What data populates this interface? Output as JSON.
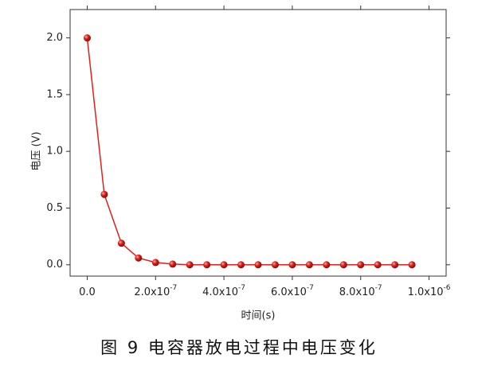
{
  "chart_data": {
    "type": "line",
    "x_label": "时间(s)",
    "y_label": "电压 (V)",
    "caption": "图 9  电容器放电过程中电压变化",
    "x": [
      0,
      5e-08,
      1e-07,
      1.5e-07,
      2e-07,
      2.5e-07,
      3e-07,
      3.5e-07,
      4e-07,
      4.5e-07,
      5e-07,
      5.5e-07,
      6e-07,
      6.5e-07,
      7e-07,
      7.5e-07,
      8e-07,
      8.5e-07,
      9e-07,
      9.5e-07
    ],
    "series": [
      {
        "name": "电压",
        "color": "#e0201b",
        "values": [
          2.0,
          0.62,
          0.19,
          0.06,
          0.02,
          0.006,
          0,
          0,
          0,
          0,
          0,
          0,
          0,
          0,
          0,
          0,
          0,
          0,
          0,
          0
        ]
      }
    ],
    "xlim": [
      -5e-08,
      1.05e-06
    ],
    "ylim": [
      -0.1,
      2.25
    ],
    "xticks": [
      {
        "value": 0,
        "label": "0.0"
      },
      {
        "value": 2e-07,
        "label": "2.0x10",
        "exponent": "-7"
      },
      {
        "value": 4e-07,
        "label": "4.0x10",
        "exponent": "-7"
      },
      {
        "value": 6e-07,
        "label": "6.0x10",
        "exponent": "-7"
      },
      {
        "value": 8e-07,
        "label": "8.0x10",
        "exponent": "-7"
      },
      {
        "value": 1e-06,
        "label": "1.0x10",
        "exponent": "-6"
      }
    ],
    "yticks": [
      {
        "value": 0,
        "label": "0.0"
      },
      {
        "value": 0.5,
        "label": "0.5"
      },
      {
        "value": 1,
        "label": "1.0"
      },
      {
        "value": 1.5,
        "label": "1.5"
      },
      {
        "value": 2,
        "label": "2.0"
      }
    ]
  }
}
